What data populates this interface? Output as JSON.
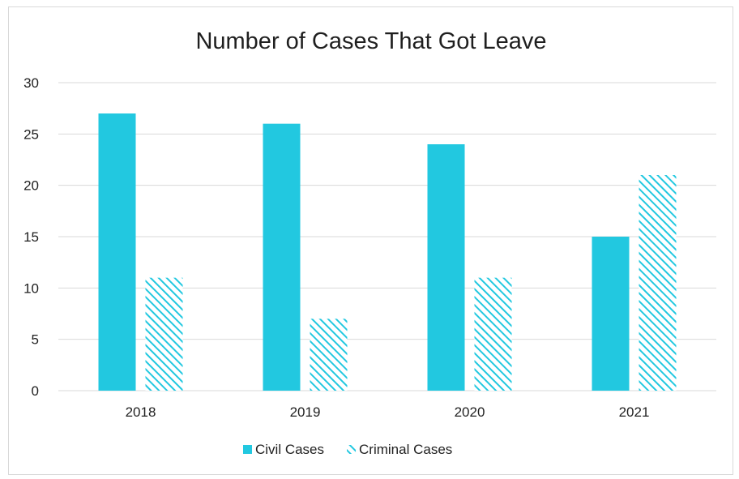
{
  "chart_data": {
    "type": "bar",
    "title": "Number of Cases That Got Leave",
    "categories": [
      "2018",
      "2019",
      "2020",
      "2021"
    ],
    "series": [
      {
        "name": "Civil Cases",
        "values": [
          27,
          26,
          24,
          15
        ],
        "color": "#22c8e0",
        "fill": "solid"
      },
      {
        "name": "Criminal Cases",
        "values": [
          11,
          7,
          11,
          21
        ],
        "color": "#22c8e0",
        "fill": "diagonal-hatch"
      }
    ],
    "ylim": [
      0,
      30
    ],
    "yticks": [
      "0",
      "5",
      "10",
      "15",
      "20",
      "25",
      "30"
    ],
    "grid": true,
    "legend": "bottom"
  }
}
